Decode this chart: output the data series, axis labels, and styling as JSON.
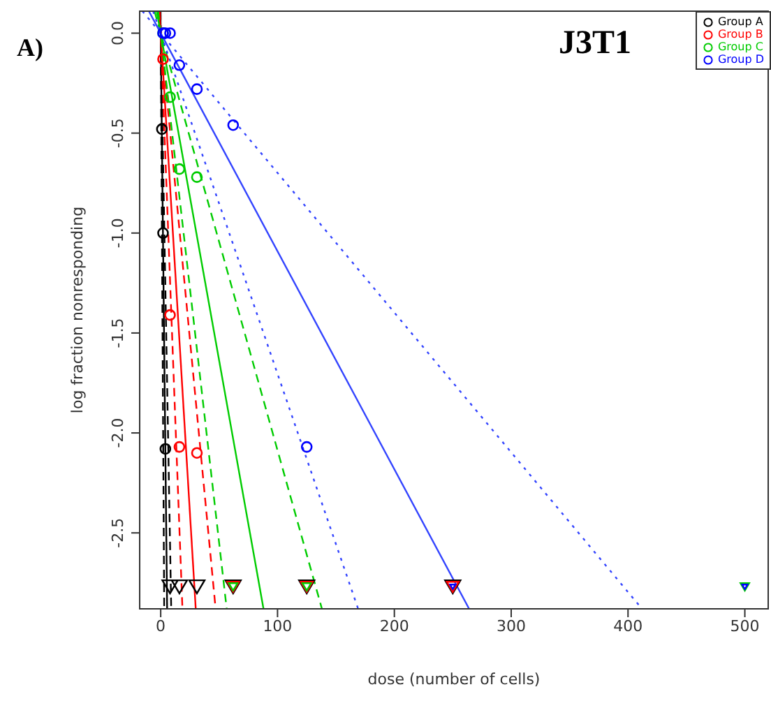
{
  "chart_data": {
    "type": "scatter",
    "title": "J3T1",
    "xlabel": "dose (number of cells)",
    "ylabel": "log fraction nonresponding",
    "annotations": [
      "A)"
    ],
    "xlim": [
      -18,
      520
    ],
    "xticks": [
      0,
      100,
      200,
      300,
      400,
      500
    ],
    "ylim": [
      -2.88,
      0.11
    ],
    "yticks": [
      {
        "value": 0,
        "label": "0.0"
      },
      -0.5,
      {
        "value": -1,
        "label": "-1.0"
      },
      -1.5,
      {
        "value": -2,
        "label": "-2.0"
      },
      -2.5
    ],
    "grid": false,
    "legend": "top right",
    "series": [
      {
        "type": "line",
        "color": "#000000",
        "line_style": "solid",
        "marker": "none",
        "x": [
          -0.2,
          5.5
        ],
        "values": [
          0.11,
          -2.88
        ]
      },
      {
        "type": "line",
        "color": "#000000",
        "line_style": "dashed",
        "marker": "none",
        "x": [
          -0.1,
          3
        ],
        "values": [
          0.11,
          -2.88
        ]
      },
      {
        "type": "line",
        "color": "#000000",
        "line_style": "dashed",
        "marker": "none",
        "x": [
          -0.3,
          9
        ],
        "values": [
          0.11,
          -2.88
        ]
      },
      {
        "type": "line",
        "color": "#ff0000",
        "line_style": "solid",
        "marker": "none",
        "x": [
          -1.1,
          30
        ],
        "values": [
          0.11,
          -2.88
        ]
      },
      {
        "type": "line",
        "color": "#ff0000",
        "line_style": "dashed",
        "marker": "none",
        "x": [
          -0.7,
          18.6
        ],
        "values": [
          0.11,
          -2.88
        ]
      },
      {
        "type": "line",
        "color": "#ff0000",
        "line_style": "dashed",
        "marker": "none",
        "x": [
          -1.8,
          47
        ],
        "values": [
          0.11,
          -2.88
        ]
      },
      {
        "type": "line",
        "color": "#00cc00",
        "line_style": "solid",
        "marker": "none",
        "x": [
          -3.4,
          88
        ],
        "values": [
          0.11,
          -2.88
        ]
      },
      {
        "type": "line",
        "color": "#00cc00",
        "line_style": "dashed",
        "marker": "none",
        "x": [
          -2.2,
          56.5
        ],
        "values": [
          0.11,
          -2.88
        ]
      },
      {
        "type": "line",
        "color": "#00cc00",
        "line_style": "dashed",
        "marker": "none",
        "x": [
          -5.3,
          138
        ],
        "values": [
          0.11,
          -2.88
        ]
      },
      {
        "type": "line",
        "color": "#3344ff",
        "line_style": "solid",
        "marker": "none",
        "x": [
          -10.1,
          264
        ],
        "values": [
          0.11,
          -2.88
        ]
      },
      {
        "type": "line",
        "color": "#3344ff",
        "line_style": "dotted",
        "marker": "none",
        "x": [
          -6.5,
          169
        ],
        "values": [
          0.11,
          -2.88
        ]
      },
      {
        "type": "line",
        "color": "#3344ff",
        "line_style": "dotted",
        "marker": "none",
        "x": [
          -15.7,
          412
        ],
        "values": [
          0.11,
          -2.88
        ]
      },
      {
        "name": "Group A",
        "color": "#000000",
        "marker": "circle",
        "x": [
          1,
          2,
          4
        ],
        "values": [
          -0.48,
          -1.0,
          -2.08
        ]
      },
      {
        "color": "#000000",
        "marker": "triangle",
        "x": [
          8,
          16,
          31,
          62,
          125,
          250
        ],
        "values": [
          -2.77,
          -2.77,
          -2.77,
          -2.77,
          -2.77,
          -2.77
        ]
      },
      {
        "name": "Group B",
        "color": "#ff0000",
        "marker": "circle",
        "x": [
          2,
          8,
          16,
          31
        ],
        "values": [
          -0.13,
          -1.41,
          -2.07,
          -2.1
        ]
      },
      {
        "color": "#ff0000",
        "marker": "triangle",
        "x": [
          62,
          125,
          250
        ],
        "values": [
          -2.77,
          -2.77,
          -2.77
        ]
      },
      {
        "name": "Group C",
        "color": "#00cc00",
        "marker": "circle",
        "x": [
          2,
          8,
          16,
          31
        ],
        "values": [
          0,
          -0.32,
          -0.68,
          -0.72
        ]
      },
      {
        "color": "#00cc00",
        "marker": "triangle",
        "x": [
          62,
          125,
          500
        ],
        "values": [
          -2.77,
          -2.77,
          -2.77
        ]
      },
      {
        "name": "Group D",
        "color": "#0000ff",
        "marker": "circle",
        "x": [
          2,
          4,
          8,
          16,
          31,
          62,
          125
        ],
        "values": [
          0,
          0,
          0,
          -0.16,
          -0.28,
          -0.46,
          -2.07
        ]
      },
      {
        "color": "#0000ff",
        "marker": "triangle",
        "x": [
          250,
          500
        ],
        "values": [
          -2.77,
          -2.77
        ]
      }
    ]
  }
}
